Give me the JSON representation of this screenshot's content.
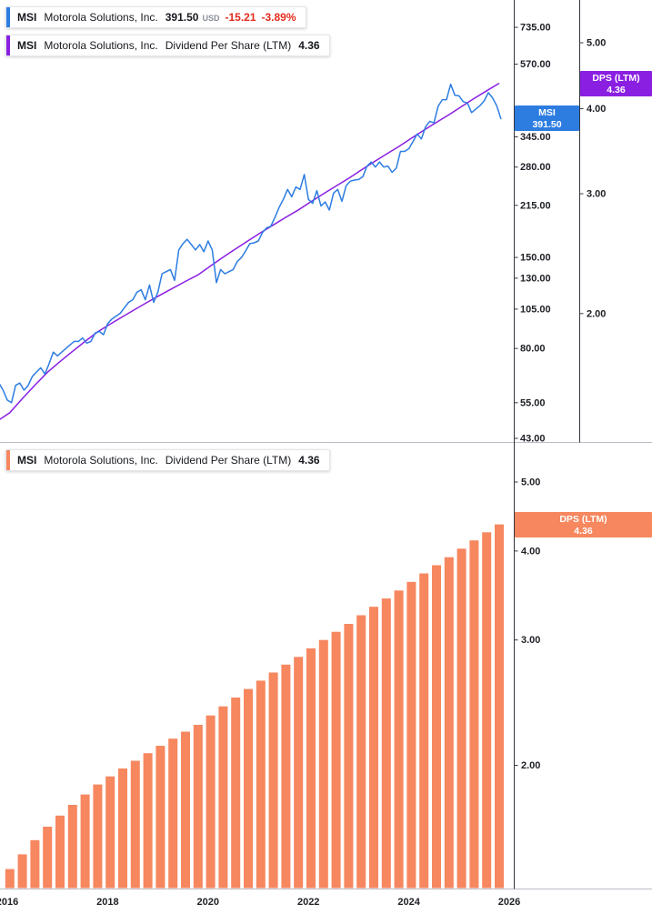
{
  "colors": {
    "blue": "#2D7DE1",
    "purple": "#8A1FE2",
    "orange": "#F6875F",
    "red": "#E22C1E",
    "axis_line": "#33363d",
    "tick_text": "#1e2026",
    "divider": "#b9bcc3"
  },
  "panes": {
    "price": {
      "legend_price": {
        "ticker": "MSI",
        "name": "Motorola Solutions, Inc.",
        "price": "391.50",
        "currency": "USD",
        "change": "-15.21",
        "change_pct": "-3.89%"
      },
      "legend_dps": {
        "ticker": "MSI",
        "name": "Motorola Solutions, Inc.",
        "metric": "Dividend Per Share (LTM)",
        "value": "4.36"
      },
      "price_axis": {
        "ticks": [
          "735.00",
          "570.00",
          "345.00",
          "280.00",
          "215.00",
          "150.00",
          "130.00",
          "105.00",
          "80.00",
          "55.00",
          "43.00"
        ],
        "badge": {
          "line1": "MSI",
          "line2": "391.50"
        }
      },
      "dps_axis": {
        "ticks": [
          "5.00",
          "4.00",
          "3.00",
          "2.00"
        ],
        "badge": {
          "line1": "DPS (LTM)",
          "line2": "4.36"
        }
      }
    },
    "dividend": {
      "legend": {
        "ticker": "MSI",
        "name": "Motorola Solutions, Inc.",
        "metric": "Dividend Per Share (LTM)",
        "value": "4.36"
      },
      "axis": {
        "ticks": [
          "5.00",
          "4.00",
          "3.00",
          "2.00"
        ],
        "badge": {
          "line1": "DPS (LTM)",
          "line2": "4.36"
        }
      }
    }
  },
  "time_axis": {
    "labels": [
      "2016",
      "2018",
      "2020",
      "2022",
      "2024",
      "2026"
    ]
  },
  "chart_data": [
    {
      "type": "line",
      "name": "MSI share price (USD, log scale)",
      "axis": "price-log-right",
      "color_key": "blue",
      "ylim": [
        43,
        735
      ],
      "x_start": 2015.8333,
      "x_step": 0.0833333,
      "values": [
        63,
        60,
        56,
        55,
        62,
        63,
        60,
        62,
        66,
        68,
        70,
        67,
        72,
        78,
        76,
        78,
        80,
        82,
        84,
        84,
        86,
        83,
        84,
        89,
        90,
        88,
        95,
        98,
        100,
        102,
        106,
        110,
        112,
        118,
        120,
        112,
        124,
        110,
        118,
        134,
        136,
        138,
        128,
        158,
        165,
        170,
        164,
        158,
        164,
        156,
        168,
        158,
        126,
        138,
        134,
        136,
        138,
        146,
        150,
        157,
        165,
        166,
        168,
        178,
        184,
        186,
        198,
        212,
        224,
        240,
        228,
        244,
        240,
        266,
        224,
        218,
        238,
        214,
        220,
        208,
        234,
        240,
        221,
        246,
        254,
        256,
        257,
        262,
        282,
        290,
        280,
        290,
        280,
        282,
        270,
        278,
        312,
        312,
        318,
        334,
        352,
        340,
        370,
        384,
        380,
        426,
        446,
        446,
        496,
        460,
        458,
        440,
        436,
        408,
        418,
        428,
        442,
        468,
        452,
        428,
        391.5
      ]
    },
    {
      "type": "line",
      "name": "MSI dividend per share LTM overlay (log scale)",
      "axis": "dps-log-far-right",
      "color_key": "purple",
      "ylim": [
        2,
        5
      ],
      "x_start": 2015.8,
      "x_step": 0.25,
      "values": [
        1.39,
        1.43,
        1.5,
        1.57,
        1.64,
        1.7,
        1.76,
        1.82,
        1.88,
        1.93,
        1.98,
        2.03,
        2.08,
        2.13,
        2.18,
        2.23,
        2.28,
        2.35,
        2.42,
        2.49,
        2.56,
        2.63,
        2.7,
        2.77,
        2.84,
        2.92,
        3.0,
        3.08,
        3.16,
        3.25,
        3.34,
        3.43,
        3.52,
        3.62,
        3.72,
        3.82,
        3.92,
        4.03,
        4.14,
        4.25,
        4.36
      ]
    },
    {
      "type": "bar",
      "name": "MSI dividend per share LTM (quarterly bars, log scale)",
      "axis": "dps-log-right",
      "color_key": "orange",
      "ylim": [
        2,
        5
      ],
      "x_start": 2016.05,
      "x_step": 0.25,
      "values": [
        1.43,
        1.5,
        1.57,
        1.64,
        1.7,
        1.76,
        1.82,
        1.88,
        1.93,
        1.98,
        2.03,
        2.08,
        2.13,
        2.18,
        2.23,
        2.28,
        2.35,
        2.42,
        2.49,
        2.56,
        2.63,
        2.7,
        2.77,
        2.84,
        2.92,
        3.0,
        3.08,
        3.16,
        3.25,
        3.34,
        3.43,
        3.52,
        3.62,
        3.72,
        3.82,
        3.92,
        4.03,
        4.14,
        4.25,
        4.36
      ]
    }
  ]
}
